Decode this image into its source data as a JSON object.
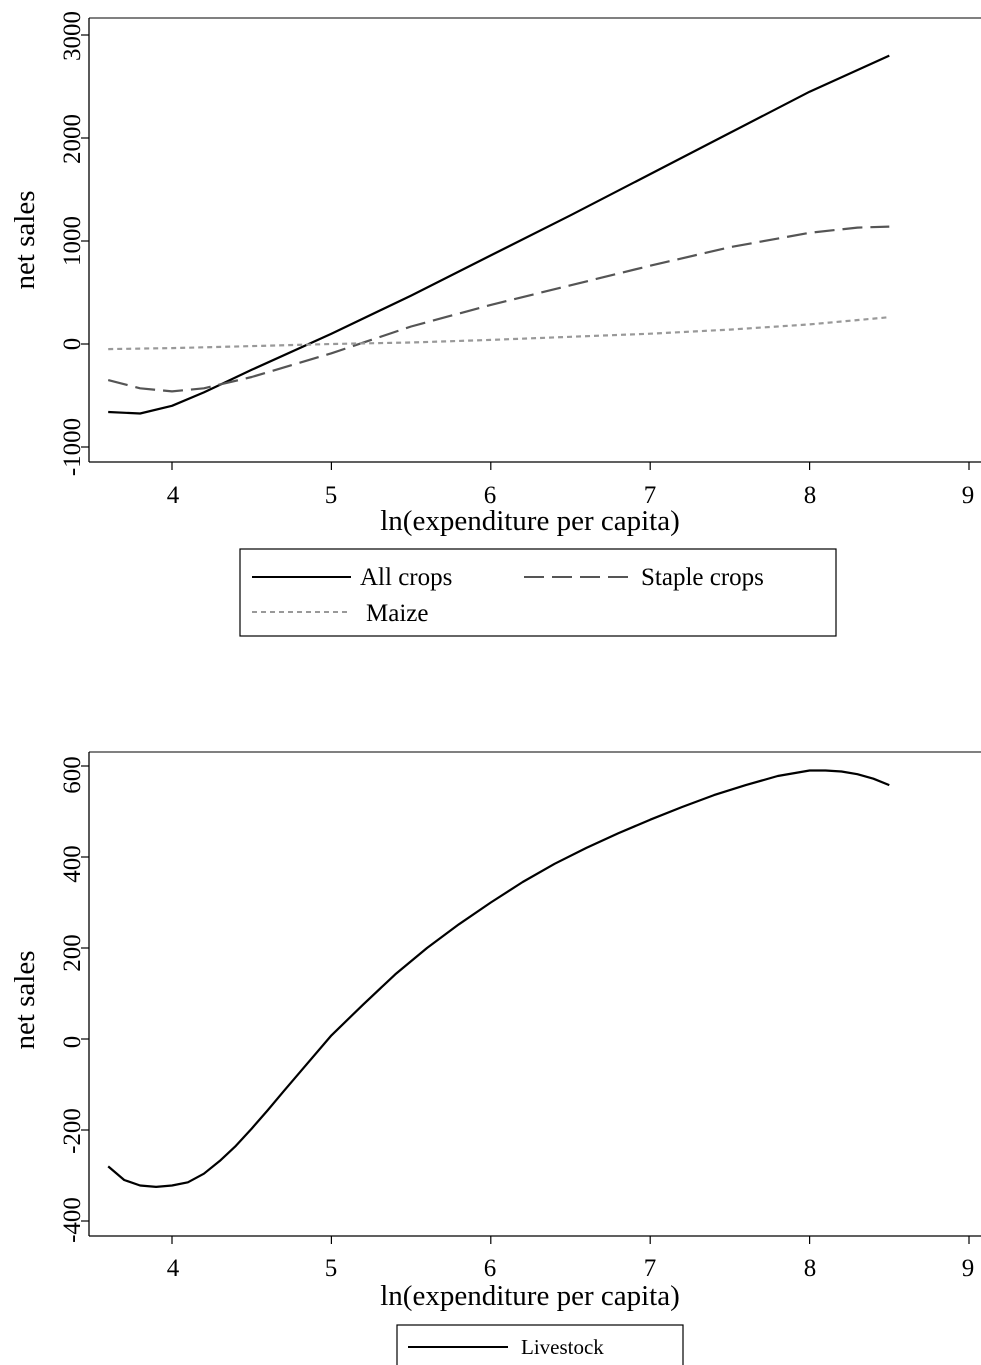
{
  "chart_data": [
    {
      "type": "line",
      "xlabel": "ln(expenditure per capita)",
      "ylabel": "net sales",
      "xlim": [
        3.5,
        9.05
      ],
      "ylim": [
        -1150,
        3200
      ],
      "xticks": [
        4,
        5,
        6,
        7,
        8,
        9
      ],
      "yticks": [
        -1000,
        0,
        1000,
        2000,
        3000
      ],
      "legend": "below",
      "series": [
        {
          "name": "All crops",
          "style": "solid",
          "color": "#000000",
          "x": [
            3.6,
            3.8,
            4.0,
            4.2,
            4.5,
            5.0,
            5.5,
            6.0,
            6.5,
            7.0,
            7.5,
            8.0,
            8.5
          ],
          "y": [
            -660,
            -675,
            -600,
            -470,
            -250,
            100,
            470,
            860,
            1250,
            1650,
            2050,
            2450,
            2800
          ]
        },
        {
          "name": "Staple crops",
          "style": "dashed",
          "color": "#555555",
          "x": [
            3.6,
            3.8,
            4.0,
            4.2,
            4.5,
            5.0,
            5.5,
            6.0,
            6.5,
            7.0,
            7.5,
            8.0,
            8.3,
            8.5
          ],
          "y": [
            -350,
            -430,
            -460,
            -430,
            -320,
            -90,
            170,
            380,
            570,
            760,
            940,
            1080,
            1130,
            1140
          ]
        },
        {
          "name": "Maize",
          "style": "dotted",
          "color": "#999999",
          "x": [
            3.6,
            4.0,
            4.5,
            5.0,
            5.5,
            6.0,
            6.5,
            7.0,
            7.5,
            8.0,
            8.5
          ],
          "y": [
            -50,
            -40,
            -20,
            0,
            15,
            40,
            70,
            100,
            140,
            190,
            260
          ]
        }
      ]
    },
    {
      "type": "line",
      "xlabel": "ln(expenditure per capita)",
      "ylabel": "net sales",
      "xlim": [
        3.5,
        9.05
      ],
      "ylim": [
        -420,
        630
      ],
      "xticks": [
        4,
        5,
        6,
        7,
        8,
        9
      ],
      "yticks": [
        -400,
        -200,
        0,
        200,
        400,
        600
      ],
      "legend": "below",
      "series": [
        {
          "name": "Livestock",
          "style": "solid",
          "color": "#000000",
          "x": [
            3.6,
            3.7,
            3.8,
            3.9,
            4.0,
            4.1,
            4.2,
            4.3,
            4.4,
            4.5,
            4.6,
            4.7,
            4.8,
            5.0,
            5.2,
            5.4,
            5.6,
            5.8,
            6.0,
            6.2,
            6.4,
            6.6,
            6.8,
            7.0,
            7.2,
            7.4,
            7.6,
            7.8,
            8.0,
            8.1,
            8.2,
            8.3,
            8.4,
            8.5
          ],
          "y": [
            -280,
            -310,
            -322,
            -325,
            -322,
            -315,
            -296,
            -268,
            -235,
            -197,
            -157,
            -115,
            -74,
            8,
            76,
            142,
            200,
            252,
            300,
            345,
            385,
            420,
            452,
            482,
            510,
            536,
            558,
            578,
            590,
            590,
            588,
            582,
            572,
            558
          ]
        }
      ]
    }
  ]
}
